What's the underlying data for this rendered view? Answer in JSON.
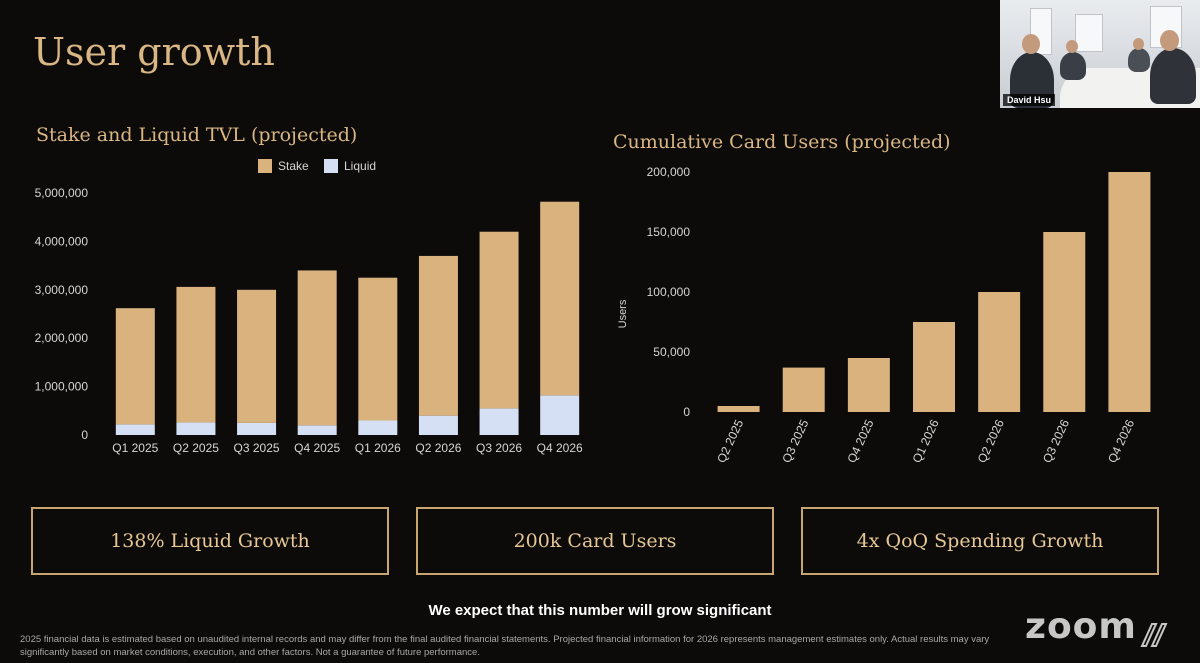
{
  "page": {
    "title": "User growth"
  },
  "chart_data": [
    {
      "type": "bar",
      "stacked": true,
      "title": "Stake and Liquid TVL (projected)",
      "xlabel": "",
      "ylabel": "",
      "categories": [
        "Q1 2025",
        "Q2 2025",
        "Q3 2025",
        "Q4 2025",
        "Q1 2026",
        "Q2 2026",
        "Q3 2026",
        "Q4 2026"
      ],
      "series": [
        {
          "name": "Stake",
          "color": "#d9b27e",
          "values": [
            2400000,
            2800000,
            2750000,
            3200000,
            2950000,
            3300000,
            3650000,
            4000000
          ]
        },
        {
          "name": "Liquid",
          "color": "#d6e0f4",
          "values": [
            220000,
            260000,
            250000,
            200000,
            300000,
            400000,
            550000,
            820000
          ]
        }
      ],
      "yticks": [
        "0",
        "1,000,000",
        "2,000,000",
        "3,000,000",
        "4,000,000",
        "5,000,000"
      ],
      "ylim": [
        0,
        5000000
      ],
      "legend": "top-center",
      "grid": false
    },
    {
      "type": "bar",
      "title": "Cumulative Card Users (projected)",
      "xlabel": "",
      "ylabel": "Users",
      "categories": [
        "Q2 2025",
        "Q3 2025",
        "Q4 2025",
        "Q1 2026",
        "Q2 2026",
        "Q3 2026",
        "Q4 2026"
      ],
      "values": [
        5000,
        37000,
        45000,
        75000,
        100000,
        150000,
        200000
      ],
      "color": "#d9b27e",
      "yticks": [
        "0",
        "50,000",
        "100,000",
        "150,000",
        "200,000"
      ],
      "ylim": [
        0,
        200000
      ],
      "grid": false
    }
  ],
  "callouts": [
    "138% Liquid Growth",
    "200k Card Users",
    "4x QoQ Spending Growth"
  ],
  "caption": "We expect that this number will grow significant",
  "disclaimer": "2025 financial data  is estimated based on unaudited internal records and may differ from the final audited financial statements. Projected financial information for 2026 represents management estimates only. Actual results may vary significantly based on market conditions, execution, and other factors. Not a guarantee of future performance.",
  "video": {
    "participant_name": "David Hsu"
  },
  "branding": {
    "logo_text": "zoom"
  }
}
